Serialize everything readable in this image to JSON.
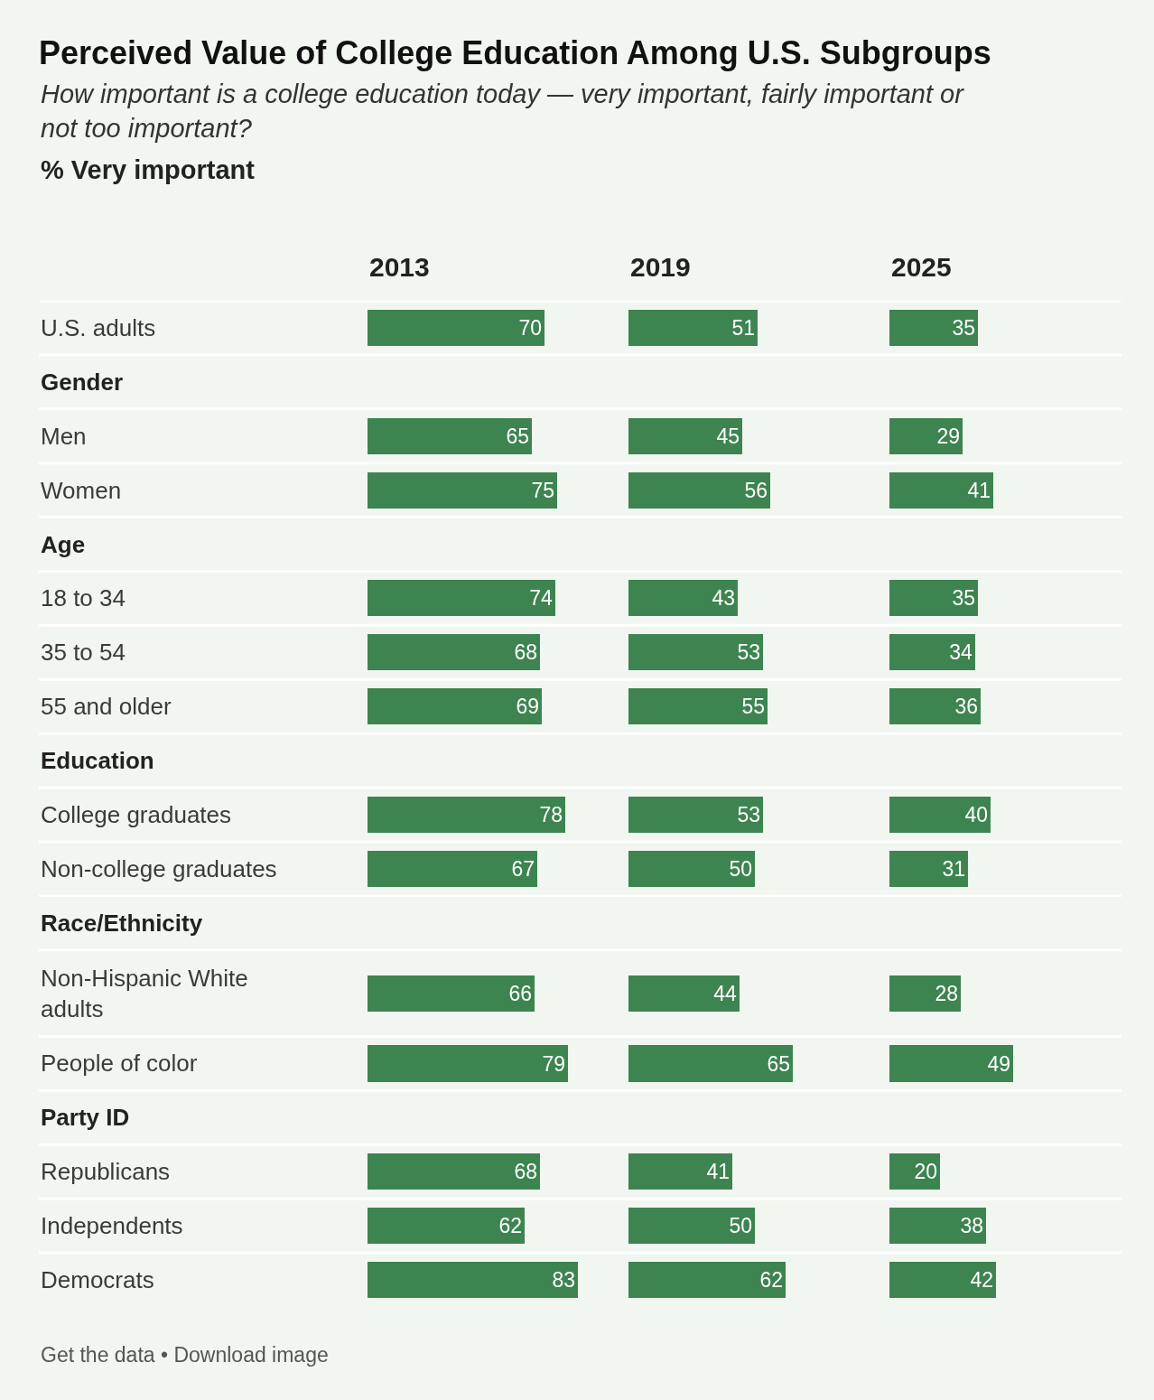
{
  "chart_data": [
    {
      "type": "other",
      "title": "Perceived Value of College Education Among U.S. Subgroups",
      "subtitle": "How important is a college education today — very important, fairly important or not too important?",
      "annotations": [
        "% Very important",
        "Get the data • Download image"
      ]
    },
    {
      "type": "bar",
      "orientation": "horizontal",
      "title": "2013",
      "categories": [
        "U.S. adults",
        "Gender",
        "Men",
        "Women",
        "Age",
        "18 to 34",
        "35 to 54",
        "55 and older",
        "Education",
        "College graduates",
        "Non-college graduates",
        "Race/Ethnicity",
        "Non-Hispanic White adults",
        "People of color",
        "Party ID",
        "Republicans",
        "Independents",
        "Democrats"
      ],
      "values": [
        70,
        null,
        65,
        75,
        null,
        74,
        68,
        69,
        null,
        78,
        67,
        null,
        66,
        79,
        null,
        68,
        62,
        83
      ],
      "color": "#3d8451",
      "data_labels": true,
      "tick_labels": "y",
      "grid": "y"
    },
    {
      "type": "bar",
      "orientation": "horizontal",
      "title": "2019",
      "categories": [
        "U.S. adults",
        "Gender",
        "Men",
        "Women",
        "Age",
        "18 to 34",
        "35 to 54",
        "55 and older",
        "Education",
        "College graduates",
        "Non-college graduates",
        "Race/Ethnicity",
        "Non-Hispanic White adults",
        "People of color",
        "Party ID",
        "Republicans",
        "Independents",
        "Democrats"
      ],
      "values": [
        51,
        null,
        45,
        56,
        null,
        43,
        53,
        55,
        null,
        53,
        50,
        null,
        44,
        65,
        null,
        41,
        50,
        62
      ],
      "color": "#3d8451",
      "data_labels": true,
      "tick_labels": false,
      "grid": "y"
    },
    {
      "type": "bar",
      "orientation": "horizontal",
      "title": "2025",
      "categories": [
        "U.S. adults",
        "Gender",
        "Men",
        "Women",
        "Age",
        "18 to 34",
        "35 to 54",
        "55 and older",
        "Education",
        "College graduates",
        "Non-college graduates",
        "Race/Ethnicity",
        "Non-Hispanic White adults",
        "People of color",
        "Party ID",
        "Republicans",
        "Independents",
        "Democrats"
      ],
      "values": [
        35,
        null,
        29,
        41,
        null,
        35,
        34,
        36,
        null,
        40,
        31,
        null,
        28,
        49,
        null,
        20,
        38,
        42
      ],
      "color": "#3d8451",
      "data_labels": true,
      "tick_labels": false,
      "grid": "y"
    }
  ]
}
